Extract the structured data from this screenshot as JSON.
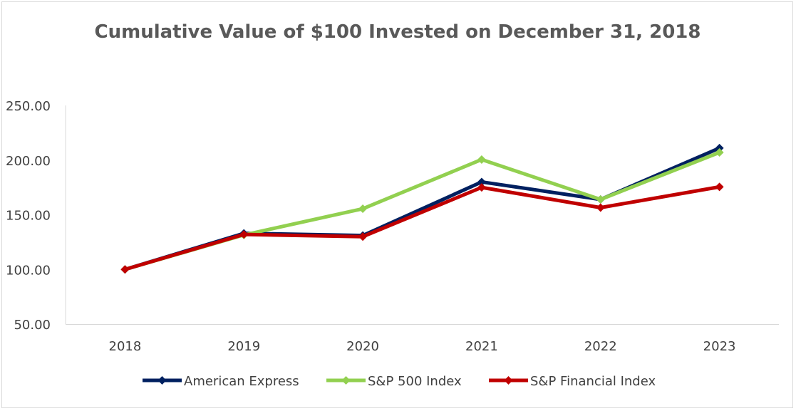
{
  "chart_data": {
    "type": "line",
    "title": "Cumulative Value of $100 Invested on December 31, 2018",
    "categories": [
      "2018",
      "2019",
      "2020",
      "2021",
      "2022",
      "2023"
    ],
    "ylim": [
      50,
      250
    ],
    "yticks": [
      50,
      100,
      150,
      200,
      250
    ],
    "ytick_labels": [
      "50.00",
      "100.00",
      "150.00",
      "200.00",
      "250.00"
    ],
    "grid": false,
    "legend_position": "bottom",
    "marker": "diamond",
    "series": [
      {
        "name": "American Express",
        "color": "#002060",
        "values": [
          100,
          133,
          131,
          180,
          164,
          211
        ]
      },
      {
        "name": "S&P 500 Index",
        "color": "#92d050",
        "values": [
          100,
          131.5,
          155.5,
          200.5,
          164,
          207
        ]
      },
      {
        "name": "S&P Financial Index",
        "color": "#c00000",
        "values": [
          100,
          132,
          130,
          175,
          156.5,
          175.5
        ]
      }
    ]
  }
}
